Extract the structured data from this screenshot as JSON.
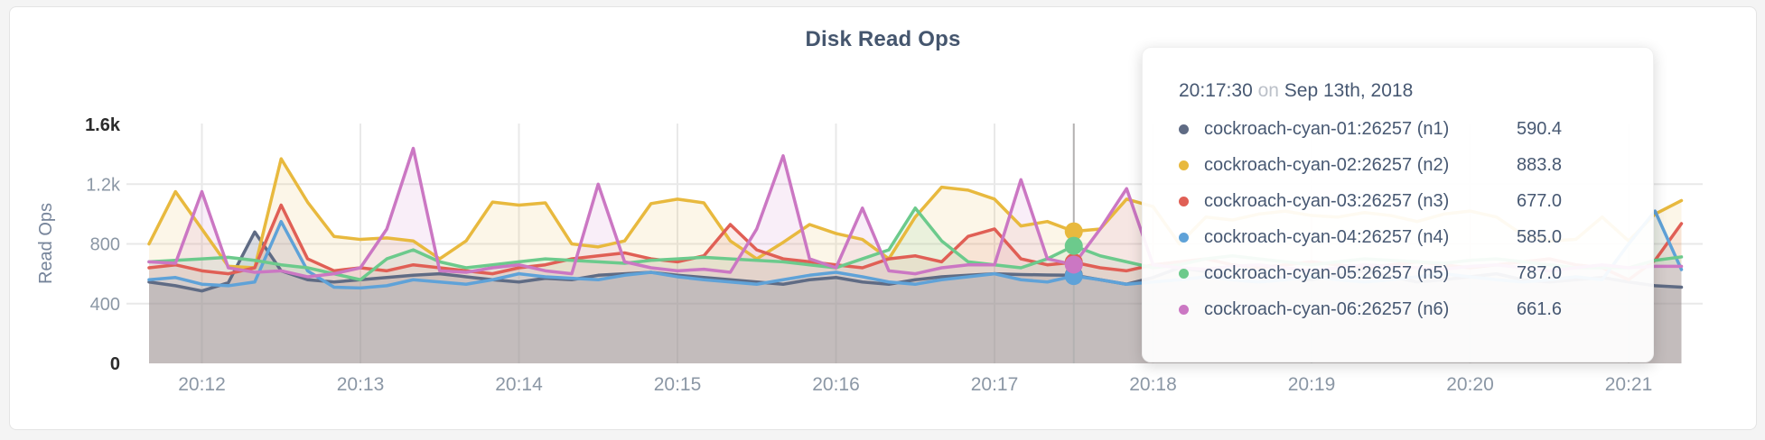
{
  "chart": {
    "grid_color": "#e9e9e9",
    "axis_text_color": "#8b97a5",
    "axis_end_text_color": "#2b2b2b",
    "ylabel_color": "#76849a",
    "title_color": "#45566e",
    "hover_line_color": "#b3b1b1",
    "fill_opacity": 0.12,
    "base_fill_opacity": 0.22
  },
  "tooltip": {
    "time": "20:17:30",
    "conjunction": "on",
    "date": "Sep 13th, 2018",
    "rows": [
      {
        "name": "cockroach-cyan-01:26257 (n1)",
        "value": "590.4",
        "color": "#5f6b84"
      },
      {
        "name": "cockroach-cyan-02:26257 (n2)",
        "value": "883.8",
        "color": "#e8b93e"
      },
      {
        "name": "cockroach-cyan-03:26257 (n3)",
        "value": "677.0",
        "color": "#e05f55"
      },
      {
        "name": "cockroach-cyan-04:26257 (n4)",
        "value": "585.0",
        "color": "#5fa2d8"
      },
      {
        "name": "cockroach-cyan-05:26257 (n5)",
        "value": "787.0",
        "color": "#6cca8c"
      },
      {
        "name": "cockroach-cyan-06:26257 (n6)",
        "value": "661.6",
        "color": "#cb77c3"
      }
    ]
  },
  "chart_data": {
    "type": "line",
    "title": "Disk Read Ops",
    "ylabel": "Read Ops",
    "ylim": [
      0,
      1600
    ],
    "grid": true,
    "legend_position": "tooltip-only",
    "x_start_time": "20:11:40",
    "x_step_seconds": 10,
    "hover_index": 35,
    "hover_time": "20:17:30",
    "yticks": [
      {
        "label": "0",
        "value": 0,
        "emph": true,
        "grid": false
      },
      {
        "label": "400",
        "value": 400,
        "emph": false,
        "grid": true
      },
      {
        "label": "800",
        "value": 800,
        "emph": false,
        "grid": true
      },
      {
        "label": "1.2k",
        "value": 1200,
        "emph": false,
        "grid": true
      },
      {
        "label": "1.6k",
        "value": 1600,
        "emph": true,
        "grid": false
      }
    ],
    "xticks": [
      {
        "label": "20:12",
        "index": 2
      },
      {
        "label": "20:13",
        "index": 8
      },
      {
        "label": "20:14",
        "index": 14
      },
      {
        "label": "20:15",
        "index": 20
      },
      {
        "label": "20:16",
        "index": 26
      },
      {
        "label": "20:17",
        "index": 32
      },
      {
        "label": "20:18",
        "index": 38
      },
      {
        "label": "20:19",
        "index": 44
      },
      {
        "label": "20:20",
        "index": 50
      },
      {
        "label": "20:21",
        "index": 56
      }
    ],
    "series": [
      {
        "name": "cockroach-cyan-01:26257 (n1)",
        "color": "#5f6b84",
        "hover_value": 590.4,
        "values": [
          545,
          520,
          485,
          540,
          880,
          620,
          560,
          545,
          560,
          575,
          590,
          600,
          580,
          560,
          545,
          570,
          560,
          590,
          600,
          610,
          590,
          575,
          560,
          545,
          530,
          560,
          575,
          545,
          530,
          560,
          580,
          590,
          600,
          595,
          592,
          590.4,
          560,
          530,
          575,
          640,
          615,
          560,
          545,
          575,
          560,
          590,
          620,
          580,
          545,
          560,
          580,
          600,
          560,
          545,
          560,
          575,
          545,
          520,
          510
        ]
      },
      {
        "name": "cockroach-cyan-02:26257 (n2)",
        "color": "#e8b93e",
        "hover_value": 883.8,
        "values": [
          800,
          1150,
          900,
          650,
          640,
          1370,
          1080,
          850,
          830,
          840,
          820,
          700,
          820,
          1080,
          1060,
          1075,
          800,
          780,
          820,
          1070,
          1100,
          1075,
          820,
          700,
          810,
          930,
          870,
          830,
          700,
          980,
          1180,
          1160,
          1100,
          920,
          950,
          883.8,
          900,
          1100,
          1050,
          800,
          980,
          960,
          1000,
          1020,
          990,
          980,
          1010,
          990,
          950,
          1000,
          1020,
          980,
          860,
          820,
          830,
          980,
          820,
          1000,
          1090
        ]
      },
      {
        "name": "cockroach-cyan-03:26257 (n3)",
        "color": "#e05f55",
        "hover_value": 677.0,
        "values": [
          640,
          660,
          620,
          600,
          640,
          1060,
          700,
          620,
          640,
          620,
          660,
          640,
          620,
          600,
          640,
          660,
          700,
          720,
          740,
          700,
          680,
          720,
          930,
          760,
          700,
          680,
          660,
          640,
          700,
          720,
          680,
          850,
          900,
          700,
          660,
          677,
          640,
          620,
          660,
          680,
          700,
          660,
          640,
          660,
          680,
          660,
          640,
          660,
          680,
          660,
          640,
          660,
          680,
          700,
          660,
          640,
          560,
          690,
          936
        ]
      },
      {
        "name": "cockroach-cyan-04:26257 (n4)",
        "color": "#5fa2d8",
        "hover_value": 585.0,
        "values": [
          560,
          575,
          530,
          520,
          545,
          950,
          620,
          510,
          505,
          520,
          560,
          545,
          530,
          560,
          600,
          580,
          570,
          560,
          590,
          610,
          580,
          560,
          545,
          530,
          560,
          590,
          610,
          580,
          545,
          530,
          560,
          580,
          600,
          560,
          545,
          585,
          560,
          530,
          545,
          560,
          580,
          560,
          545,
          560,
          580,
          560,
          545,
          560,
          580,
          600,
          580,
          560,
          545,
          560,
          580,
          560,
          800,
          1020,
          628
        ]
      },
      {
        "name": "cockroach-cyan-05:26257 (n5)",
        "color": "#6cca8c",
        "hover_value": 787.0,
        "values": [
          680,
          690,
          700,
          710,
          690,
          660,
          640,
          600,
          560,
          700,
          760,
          680,
          640,
          660,
          680,
          700,
          690,
          680,
          670,
          690,
          700,
          710,
          700,
          690,
          680,
          660,
          640,
          700,
          760,
          1040,
          820,
          680,
          660,
          640,
          700,
          787,
          720,
          680,
          640,
          660,
          700,
          720,
          700,
          680,
          660,
          680,
          700,
          690,
          680,
          670,
          690,
          700,
          680,
          660,
          640,
          640,
          640,
          690,
          713
        ]
      },
      {
        "name": "cockroach-cyan-06:26257 (n6)",
        "color": "#cb77c3",
        "hover_value": 661.6,
        "values": [
          680,
          670,
          1150,
          640,
          610,
          620,
          580,
          600,
          640,
          900,
          1440,
          620,
          610,
          640,
          660,
          620,
          600,
          1200,
          680,
          640,
          620,
          630,
          610,
          900,
          1390,
          700,
          640,
          1040,
          620,
          600,
          640,
          660,
          660,
          1230,
          700,
          661.6,
          900,
          1170,
          660,
          640,
          630,
          650,
          660,
          640,
          620,
          640,
          660,
          650,
          640,
          630,
          650,
          660,
          640,
          620,
          640,
          660,
          640,
          650,
          650
        ]
      }
    ]
  }
}
